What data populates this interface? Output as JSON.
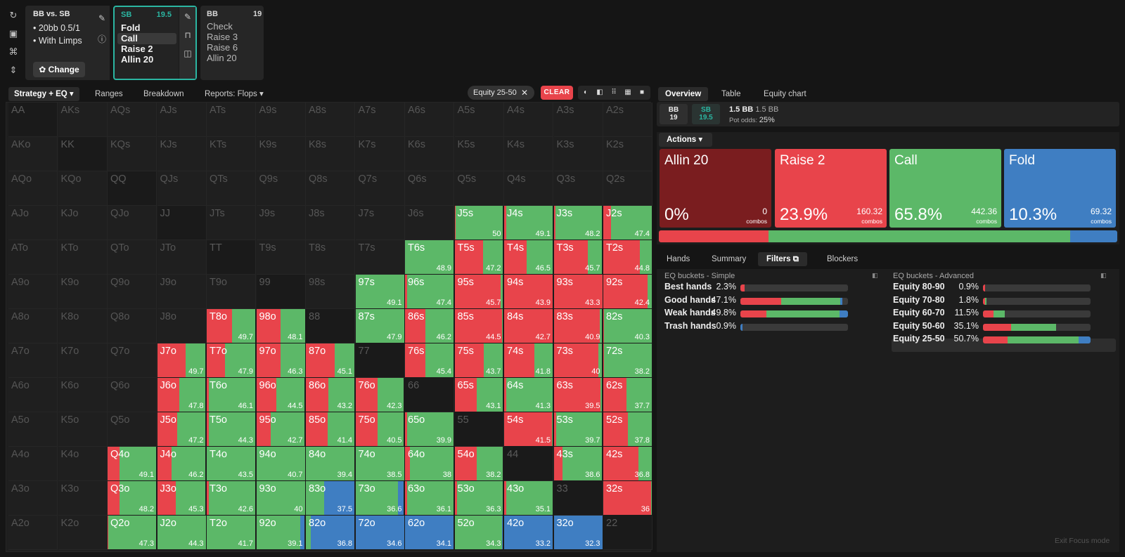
{
  "colors": {
    "allin": "#7a1d1f",
    "raise": "#e8444b",
    "call": "#5cb868",
    "fold": "#3f7ec2",
    "accent": "#2bb6a2",
    "idle": "#1f1f1f"
  },
  "rail_icons": [
    "refresh-icon",
    "save-icon",
    "gamepad-icon",
    "expand-vertical-icon"
  ],
  "config": {
    "title": "BB vs. SB",
    "stack_line": "• 20bb 0.5/1",
    "limp_line": "• With Limps",
    "change_label": "✿ Change",
    "side_icons": [
      "pencil-icon",
      "info-icon"
    ]
  },
  "node_sb": {
    "player": "SB",
    "stack": "19.5",
    "options": [
      "Fold",
      "Call",
      "Raise 2",
      "Allin 20"
    ],
    "selected": 1
  },
  "node_bb": {
    "player": "BB",
    "stack": "19",
    "options": [
      "Check",
      "Raise 3",
      "Raise 6",
      "Allin 20"
    ]
  },
  "left_tabs": [
    "Strategy + EQ ▾",
    "Ranges",
    "Breakdown",
    "Reports: Flops ▾"
  ],
  "filter_chip": {
    "label": "Equity 25-50",
    "close": "✕"
  },
  "clear_label": "CLEAR",
  "view_buttons": [
    "◐",
    "◧",
    "⠿",
    "▦",
    "■"
  ],
  "grid": {
    "ranks": [
      "A",
      "K",
      "Q",
      "J",
      "T",
      "9",
      "8",
      "7",
      "6",
      "5",
      "4",
      "3",
      "2"
    ],
    "cells": [
      [
        "AA",
        "AKs",
        "AQs",
        "AJs",
        "ATs",
        "A9s",
        "A8s",
        "A7s",
        "A6s",
        "A5s",
        "A4s",
        "A3s",
        "A2s"
      ],
      [
        "AKo",
        "KK",
        "KQs",
        "KJs",
        "KTs",
        "K9s",
        "K8s",
        "K7s",
        "K6s",
        "K5s",
        "K4s",
        "K3s",
        "K2s"
      ],
      [
        "AQo",
        "KQo",
        "QQ",
        "QJs",
        "QTs",
        "Q9s",
        "Q8s",
        "Q7s",
        "Q6s",
        "Q5s",
        "Q4s",
        "Q3s",
        "Q2s"
      ],
      [
        "AJo",
        "KJo",
        "QJo",
        "JJ",
        "JTs",
        "J9s",
        "J8s",
        "J7s",
        "J6s",
        "J5s",
        "J4s",
        "J3s",
        "J2s"
      ],
      [
        "ATo",
        "KTo",
        "QTo",
        "JTo",
        "TT",
        "T9s",
        "T8s",
        "T7s",
        "T6s",
        "T5s",
        "T4s",
        "T3s",
        "T2s"
      ],
      [
        "A9o",
        "K9o",
        "Q9o",
        "J9o",
        "T9o",
        "99",
        "98s",
        "97s",
        "96s",
        "95s",
        "94s",
        "93s",
        "92s"
      ],
      [
        "A8o",
        "K8o",
        "Q8o",
        "J8o",
        "T8o",
        "98o",
        "88",
        "87s",
        "86s",
        "85s",
        "84s",
        "83s",
        "82s"
      ],
      [
        "A7o",
        "K7o",
        "Q7o",
        "J7o",
        "T7o",
        "97o",
        "87o",
        "77",
        "76s",
        "75s",
        "74s",
        "73s",
        "72s"
      ],
      [
        "A6o",
        "K6o",
        "Q6o",
        "J6o",
        "T6o",
        "96o",
        "86o",
        "76o",
        "66",
        "65s",
        "64s",
        "63s",
        "62s"
      ],
      [
        "A5o",
        "K5o",
        "Q5o",
        "J5o",
        "T5o",
        "95o",
        "85o",
        "75o",
        "65o",
        "55",
        "54s",
        "53s",
        "52s"
      ],
      [
        "A4o",
        "K4o",
        "Q4o",
        "J4o",
        "T4o",
        "94o",
        "84o",
        "74o",
        "64o",
        "54o",
        "44",
        "43s",
        "42s"
      ],
      [
        "A3o",
        "K3o",
        "Q3o",
        "J3o",
        "T3o",
        "93o",
        "83o",
        "73o",
        "63o",
        "53o",
        "43o",
        "33",
        "32s"
      ],
      [
        "A2o",
        "K2o",
        "Q2o",
        "J2o",
        "T2o",
        "92o",
        "82o",
        "72o",
        "62o",
        "52o",
        "42o",
        "32o",
        "22"
      ]
    ],
    "active": {
      "J5s": {
        "eq": "50",
        "mix": [
          0,
          0.02,
          0.98,
          0
        ]
      },
      "J4s": {
        "eq": "49.1",
        "mix": [
          0,
          0.04,
          0.96,
          0
        ]
      },
      "J3s": {
        "eq": "48.2",
        "mix": [
          0,
          0.04,
          0.96,
          0
        ]
      },
      "J2s": {
        "eq": "47.4",
        "mix": [
          0,
          0.16,
          0.84,
          0
        ]
      },
      "T6s": {
        "eq": "48.9",
        "mix": [
          0,
          0,
          1,
          0
        ]
      },
      "T5s": {
        "eq": "47.2",
        "mix": [
          0,
          0.58,
          0.42,
          0
        ]
      },
      "T4s": {
        "eq": "46.5",
        "mix": [
          0,
          0.46,
          0.54,
          0
        ]
      },
      "T3s": {
        "eq": "45.7",
        "mix": [
          0,
          0.7,
          0.3,
          0
        ]
      },
      "T2s": {
        "eq": "44.8",
        "mix": [
          0,
          0.75,
          0.25,
          0
        ]
      },
      "97s": {
        "eq": "49.1",
        "mix": [
          0,
          0,
          1,
          0
        ]
      },
      "96s": {
        "eq": "47.4",
        "mix": [
          0,
          0.04,
          0.96,
          0
        ]
      },
      "95s": {
        "eq": "45.7",
        "mix": [
          0,
          0.95,
          0.05,
          0
        ]
      },
      "94s": {
        "eq": "43.9",
        "mix": [
          0,
          1,
          0,
          0
        ]
      },
      "93s": {
        "eq": "43.3",
        "mix": [
          0,
          1,
          0,
          0
        ]
      },
      "92s": {
        "eq": "42.4",
        "mix": [
          0,
          0.92,
          0.08,
          0
        ]
      },
      "T8o": {
        "eq": "49.7",
        "mix": [
          0,
          0.52,
          0.48,
          0
        ]
      },
      "98o": {
        "eq": "48.1",
        "mix": [
          0,
          0.5,
          0.5,
          0
        ]
      },
      "87s": {
        "eq": "47.9",
        "mix": [
          0,
          0,
          1,
          0
        ]
      },
      "86s": {
        "eq": "46.2",
        "mix": [
          0,
          0.42,
          0.58,
          0
        ]
      },
      "85s": {
        "eq": "44.5",
        "mix": [
          0,
          0.98,
          0.02,
          0
        ]
      },
      "84s": {
        "eq": "42.7",
        "mix": [
          0,
          1,
          0,
          0
        ]
      },
      "83s": {
        "eq": "40.9",
        "mix": [
          0,
          0.95,
          0.05,
          0
        ]
      },
      "82s": {
        "eq": "40.3",
        "mix": [
          0,
          0.02,
          0.98,
          0
        ]
      },
      "J7o": {
        "eq": "49.7",
        "mix": [
          0,
          0.58,
          0.42,
          0
        ]
      },
      "T7o": {
        "eq": "47.9",
        "mix": [
          0,
          0.38,
          0.62,
          0
        ]
      },
      "97o": {
        "eq": "46.3",
        "mix": [
          0,
          0.5,
          0.5,
          0
        ]
      },
      "87o": {
        "eq": "45.1",
        "mix": [
          0,
          0.6,
          0.4,
          0
        ]
      },
      "76s": {
        "eq": "45.4",
        "mix": [
          0,
          0.42,
          0.58,
          0
        ]
      },
      "75s": {
        "eq": "43.7",
        "mix": [
          0,
          0.6,
          0.4,
          0
        ]
      },
      "74s": {
        "eq": "41.8",
        "mix": [
          0,
          0.62,
          0.38,
          0
        ]
      },
      "73s": {
        "eq": "40",
        "mix": [
          0,
          0.92,
          0.08,
          0
        ]
      },
      "72s": {
        "eq": "38.2",
        "mix": [
          0,
          0.02,
          0.98,
          0
        ]
      },
      "J6o": {
        "eq": "47.8",
        "mix": [
          0,
          0.45,
          0.55,
          0
        ]
      },
      "T6o": {
        "eq": "46.1",
        "mix": [
          0,
          0.05,
          0.95,
          0
        ]
      },
      "96o": {
        "eq": "44.5",
        "mix": [
          0,
          0.42,
          0.58,
          0
        ]
      },
      "86o": {
        "eq": "43.2",
        "mix": [
          0,
          0.46,
          0.54,
          0
        ]
      },
      "76o": {
        "eq": "42.3",
        "mix": [
          0,
          0.45,
          0.55,
          0
        ]
      },
      "65s": {
        "eq": "43.1",
        "mix": [
          0,
          0.46,
          0.54,
          0
        ]
      },
      "64s": {
        "eq": "41.3",
        "mix": [
          0,
          0.05,
          0.95,
          0
        ]
      },
      "63s": {
        "eq": "39.5",
        "mix": [
          0,
          0.96,
          0.04,
          0
        ]
      },
      "62s": {
        "eq": "37.7",
        "mix": [
          0,
          0.48,
          0.52,
          0
        ]
      },
      "J5o": {
        "eq": "47.2",
        "mix": [
          0,
          0.42,
          0.58,
          0
        ]
      },
      "T5o": {
        "eq": "44.3",
        "mix": [
          0,
          0.05,
          0.95,
          0
        ]
      },
      "95o": {
        "eq": "42.7",
        "mix": [
          0,
          0.3,
          0.7,
          0
        ]
      },
      "85o": {
        "eq": "41.4",
        "mix": [
          0,
          0.45,
          0.55,
          0
        ]
      },
      "75o": {
        "eq": "40.5",
        "mix": [
          0,
          0.45,
          0.55,
          0
        ]
      },
      "65o": {
        "eq": "39.9",
        "mix": [
          0,
          0.05,
          0.95,
          0
        ]
      },
      "54s": {
        "eq": "41.5",
        "mix": [
          0,
          0.98,
          0.02,
          0
        ]
      },
      "53s": {
        "eq": "39.7",
        "mix": [
          0,
          0.05,
          0.95,
          0
        ]
      },
      "52s": {
        "eq": "37.8",
        "mix": [
          0,
          0.5,
          0.5,
          0
        ]
      },
      "Q4o": {
        "eq": "49.1",
        "mix": [
          0,
          0.25,
          0.75,
          0
        ]
      },
      "J4o": {
        "eq": "46.2",
        "mix": [
          0,
          0.3,
          0.7,
          0
        ]
      },
      "T4o": {
        "eq": "43.5",
        "mix": [
          0,
          0,
          1,
          0
        ]
      },
      "94o": {
        "eq": "40.7",
        "mix": [
          0,
          0,
          1,
          0
        ]
      },
      "84o": {
        "eq": "39.4",
        "mix": [
          0,
          0,
          1,
          0
        ]
      },
      "74o": {
        "eq": "38.5",
        "mix": [
          0,
          0,
          1,
          0
        ]
      },
      "64o": {
        "eq": "38",
        "mix": [
          0,
          0.1,
          0.9,
          0
        ]
      },
      "54o": {
        "eq": "38.2",
        "mix": [
          0,
          0.45,
          0.55,
          0
        ]
      },
      "43s": {
        "eq": "38.6",
        "mix": [
          0,
          0.18,
          0.82,
          0
        ]
      },
      "42s": {
        "eq": "36.8",
        "mix": [
          0,
          0.72,
          0.28,
          0
        ]
      },
      "Q3o": {
        "eq": "48.2",
        "mix": [
          0,
          0.25,
          0.75,
          0
        ]
      },
      "J3o": {
        "eq": "45.3",
        "mix": [
          0,
          0.38,
          0.62,
          0
        ]
      },
      "T3o": {
        "eq": "42.6",
        "mix": [
          0,
          0.05,
          0.95,
          0
        ]
      },
      "93o": {
        "eq": "40",
        "mix": [
          0,
          0,
          1,
          0
        ]
      },
      "83o": {
        "eq": "37.5",
        "mix": [
          0,
          0,
          0.38,
          0.62
        ]
      },
      "73o": {
        "eq": "36.6",
        "mix": [
          0,
          0,
          0.88,
          0.12
        ]
      },
      "63o": {
        "eq": "36.1",
        "mix": [
          0,
          0.04,
          0.96,
          0
        ]
      },
      "53o": {
        "eq": "36.3",
        "mix": [
          0,
          0.05,
          0.95,
          0
        ]
      },
      "43o": {
        "eq": "35.1",
        "mix": [
          0,
          0.05,
          0.95,
          0
        ]
      },
      "32s": {
        "eq": "36",
        "mix": [
          0,
          0.98,
          0.02,
          0
        ]
      },
      "Q2o": {
        "eq": "47.3",
        "mix": [
          0,
          0.02,
          0.98,
          0
        ]
      },
      "J2o": {
        "eq": "44.3",
        "mix": [
          0,
          0,
          1,
          0
        ]
      },
      "T2o": {
        "eq": "41.7",
        "mix": [
          0,
          0,
          1,
          0
        ]
      },
      "92o": {
        "eq": "39.1",
        "mix": [
          0,
          0,
          0.9,
          0.1
        ]
      },
      "82o": {
        "eq": "36.8",
        "mix": [
          0,
          0,
          0.1,
          0.9
        ]
      },
      "72o": {
        "eq": "34.6",
        "mix": [
          0,
          0,
          0,
          1
        ]
      },
      "62o": {
        "eq": "34.1",
        "mix": [
          0,
          0,
          0,
          1
        ]
      },
      "52o": {
        "eq": "34.3",
        "mix": [
          0,
          0,
          0.98,
          0.02
        ]
      },
      "42o": {
        "eq": "33.2",
        "mix": [
          0,
          0,
          0,
          1
        ]
      },
      "32o": {
        "eq": "32.3",
        "mix": [
          0,
          0,
          0,
          1
        ]
      }
    }
  },
  "right_tabs": [
    "Overview",
    "Table",
    "Equity chart"
  ],
  "pot": {
    "bb_label": "BB",
    "bb_stack": "19",
    "sb_label": "SB",
    "sb_stack": "19.5",
    "pot_bold": "1.5 BB",
    "pot_plain": "1.5 BB",
    "odds_label": "Pot odds:",
    "odds_value": "25%"
  },
  "actions_dropdown": "Actions ▾",
  "actions": [
    {
      "name": "Allin 20",
      "pct": "0%",
      "combos": "0",
      "combos_label": "combos",
      "key": "allin",
      "freq": 0
    },
    {
      "name": "Raise 2",
      "pct": "23.9%",
      "combos": "160.32",
      "combos_label": "combos",
      "key": "raise",
      "freq": 23.9
    },
    {
      "name": "Call",
      "pct": "65.8%",
      "combos": "442.36",
      "combos_label": "combos",
      "key": "call",
      "freq": 65.8
    },
    {
      "name": "Fold",
      "pct": "10.3%",
      "combos": "69.32",
      "combos_label": "combos",
      "key": "fold",
      "freq": 10.3
    }
  ],
  "lower_tabs": [
    "Hands",
    "Summary",
    "Filters ⧉",
    "Blockers"
  ],
  "eq_simple": {
    "title": "EQ buckets - Simple",
    "rows": [
      {
        "name": "Best hands",
        "pct": "2.3%",
        "mix": [
          0,
          0.04,
          0,
          0
        ]
      },
      {
        "name": "Good hands",
        "pct": "47.1%",
        "mix": [
          0,
          0.38,
          0.55,
          0.02
        ]
      },
      {
        "name": "Weak hands",
        "pct": "49.8%",
        "mix": [
          0,
          0.24,
          0.68,
          0.08
        ]
      },
      {
        "name": "Trash hands",
        "pct": "0.9%",
        "mix": [
          0,
          0,
          0,
          0.02
        ]
      }
    ]
  },
  "eq_advanced": {
    "title": "EQ buckets - Advanced",
    "rows": [
      {
        "name": "Equity 80-90",
        "pct": "0.9%",
        "mix": [
          0,
          0.02,
          0,
          0
        ]
      },
      {
        "name": "Equity 70-80",
        "pct": "1.8%",
        "mix": [
          0,
          0.02,
          0.01,
          0
        ]
      },
      {
        "name": "Equity 60-70",
        "pct": "11.5%",
        "mix": [
          0,
          0.1,
          0.1,
          0
        ]
      },
      {
        "name": "Equity 50-60",
        "pct": "35.1%",
        "mix": [
          0,
          0.26,
          0.42,
          0
        ]
      },
      {
        "name": "Equity 25-50",
        "pct": "50.7%",
        "mix": [
          0,
          0.23,
          0.66,
          0.11
        ]
      }
    ]
  },
  "exit_label": "Exit Focus mode"
}
